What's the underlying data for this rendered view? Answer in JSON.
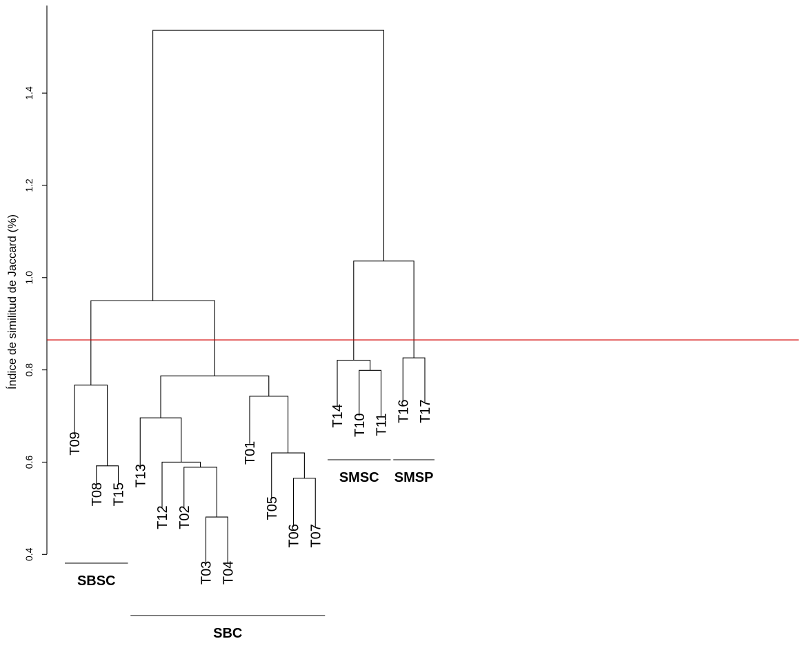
{
  "chart_data": {
    "type": "dendrogram",
    "ylabel": "Índice de similitud de Jaccard (%)",
    "ylim": [
      0.4,
      1.55
    ],
    "yticks": [
      {
        "value": 0.4,
        "label": "0.4"
      },
      {
        "value": 0.6,
        "label": "0.6"
      },
      {
        "value": 0.8,
        "label": "0.8"
      },
      {
        "value": 1.0,
        "label": "1.0"
      },
      {
        "value": 1.2,
        "label": "1.2"
      },
      {
        "value": 1.4,
        "label": "1.4"
      }
    ],
    "cut_height": 0.865,
    "cut_color": "#d40000",
    "leaf_order": [
      "T09",
      "T08",
      "T15",
      "T13",
      "T12",
      "T02",
      "T03",
      "T04",
      "T01",
      "T05",
      "T06",
      "T07",
      "T14",
      "T10",
      "T11",
      "T16",
      "T17"
    ],
    "leaf_tips": {
      "T09": 0.66,
      "T08": 0.55,
      "T15": 0.55,
      "T13": 0.59,
      "T12": 0.5,
      "T02": 0.5,
      "T03": 0.38,
      "T04": 0.38,
      "T01": 0.64,
      "T05": 0.52,
      "T06": 0.46,
      "T07": 0.46,
      "T14": 0.72,
      "T10": 0.7,
      "T11": 0.7,
      "T16": 0.73,
      "T17": 0.73
    },
    "merges": [
      {
        "id": "m1",
        "left": "T03",
        "right": "T04",
        "height": 0.481
      },
      {
        "id": "m2",
        "left": "T06",
        "right": "T07",
        "height": 0.565
      },
      {
        "id": "m3",
        "left": "T02",
        "right": "m1",
        "height": 0.589
      },
      {
        "id": "m4",
        "left": "T08",
        "right": "T15",
        "height": 0.592
      },
      {
        "id": "m5",
        "left": "T12",
        "right": "m3",
        "height": 0.6
      },
      {
        "id": "m6",
        "left": "T05",
        "right": "m2",
        "height": 0.62
      },
      {
        "id": "m7",
        "left": "T13",
        "right": "m5",
        "height": 0.696
      },
      {
        "id": "m8",
        "left": "T01",
        "right": "m6",
        "height": 0.743
      },
      {
        "id": "m9",
        "left": "T09",
        "right": "m4",
        "height": 0.767
      },
      {
        "id": "m10",
        "left": "m7",
        "right": "m8",
        "height": 0.787
      },
      {
        "id": "m11",
        "left": "T10",
        "right": "T11",
        "height": 0.799
      },
      {
        "id": "m12",
        "left": "T14",
        "right": "m11",
        "height": 0.821
      },
      {
        "id": "m13",
        "left": "T16",
        "right": "T17",
        "height": 0.826
      },
      {
        "id": "m14",
        "left": "m9",
        "right": "m10",
        "height": 0.95
      },
      {
        "id": "m15",
        "left": "m12",
        "right": "m13",
        "height": 1.036
      },
      {
        "id": "m16",
        "left": "m14",
        "right": "m15",
        "height": 1.536
      }
    ],
    "groups": [
      {
        "label": "SBSC",
        "leaves": [
          "T09",
          "T08",
          "T15"
        ],
        "tier": 1
      },
      {
        "label": "SBC",
        "leaves": [
          "T13",
          "T12",
          "T02",
          "T03",
          "T04",
          "T01",
          "T05",
          "T06",
          "T07"
        ],
        "tier": 2
      },
      {
        "label": "SMSC",
        "leaves": [
          "T14",
          "T10",
          "T11"
        ],
        "tier": 0
      },
      {
        "label": "SMSP",
        "leaves": [
          "T16",
          "T17"
        ],
        "tier": 0
      }
    ]
  }
}
